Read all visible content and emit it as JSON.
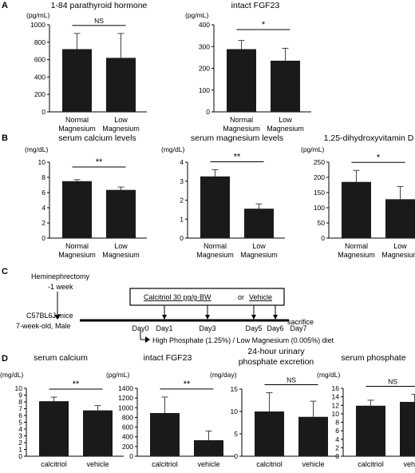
{
  "panels": [
    "A",
    "B",
    "C",
    "D"
  ],
  "chart_data": [
    {
      "id": "a1",
      "type": "bar",
      "title": "1-84 parathyroid hormone",
      "ylabel": "(pg/mL)",
      "categories": [
        [
          "Normal",
          "Magnesium"
        ],
        [
          "Low",
          "Magnesium"
        ]
      ],
      "values": [
        720,
        620
      ],
      "errors": [
        180,
        280
      ],
      "ylim": [
        0,
        1000
      ],
      "yticks": [
        0,
        200,
        400,
        600,
        800,
        1000
      ],
      "significance": "NS",
      "grid": false
    },
    {
      "id": "a2",
      "type": "bar",
      "title": "intact FGF23",
      "ylabel": "(pg/mL)",
      "categories": [
        [
          "Normal",
          "Magnesium"
        ],
        [
          "Low",
          "Magnesium"
        ]
      ],
      "values": [
        288,
        235
      ],
      "errors": [
        40,
        57
      ],
      "ylim": [
        0,
        400
      ],
      "yticks": [
        0,
        100,
        200,
        300,
        400
      ],
      "significance": "*",
      "grid": false
    },
    {
      "id": "b1",
      "type": "bar",
      "title": "serum calcium levels",
      "ylabel": "(mg/dL)",
      "categories": [
        [
          "Normal",
          "Magnesium"
        ],
        [
          "Low",
          "Magnesium"
        ]
      ],
      "values": [
        7.5,
        6.35
      ],
      "errors": [
        0.2,
        0.38
      ],
      "ylim": [
        0,
        10
      ],
      "yticks": [
        0,
        2,
        4,
        6,
        8,
        10
      ],
      "significance": "**",
      "grid": false
    },
    {
      "id": "b2",
      "type": "bar",
      "title": "serum magnesium levels",
      "ylabel": "(mg/dL)",
      "categories": [
        [
          "Normal",
          "Magnesium"
        ],
        [
          "Low",
          "Magnesium"
        ]
      ],
      "values": [
        3.25,
        1.55
      ],
      "errors": [
        0.35,
        0.25
      ],
      "ylim": [
        0,
        4
      ],
      "yticks": [
        0,
        1,
        2,
        3,
        4
      ],
      "significance": "**",
      "grid": false
    },
    {
      "id": "b3",
      "type": "bar",
      "title": "1,25-dihydroxyvitamin D",
      "ylabel": "(pg/mL)",
      "categories": [
        [
          "Normal",
          "Magnesium"
        ],
        [
          "Low",
          "Magnesium"
        ]
      ],
      "values": [
        185,
        128
      ],
      "errors": [
        38,
        42
      ],
      "ylim": [
        0,
        250
      ],
      "yticks": [
        0,
        50,
        100,
        150,
        200,
        250
      ],
      "significance": "*",
      "grid": false
    },
    {
      "id": "d1",
      "type": "bar",
      "title": "serum calcium",
      "ylabel": "(mg/dL)",
      "categories": [
        [
          "calcitriol"
        ],
        [
          "vehicle"
        ]
      ],
      "values": [
        8.1,
        6.75
      ],
      "errors": [
        0.6,
        0.7
      ],
      "ylim": [
        0,
        10
      ],
      "yticks": [
        0,
        1,
        2,
        3,
        4,
        5,
        6,
        7,
        8,
        9,
        10
      ],
      "significance": "**",
      "grid": false
    },
    {
      "id": "d2",
      "type": "bar",
      "title": "intact FGF23",
      "ylabel": "(pg/mL)",
      "categories": [
        [
          "calcitriol"
        ],
        [
          "vehicle"
        ]
      ],
      "values": [
        890,
        330
      ],
      "errors": [
        330,
        190
      ],
      "ylim": [
        0,
        1400
      ],
      "yticks": [
        0,
        200,
        400,
        600,
        800,
        1000,
        1200,
        1400
      ],
      "significance": "**",
      "grid": false
    },
    {
      "id": "d3",
      "type": "bar",
      "title": [
        "24-hour urinary",
        "phosphate excretion"
      ],
      "ylabel": "(mg/day)",
      "categories": [
        [
          "calcitriol"
        ],
        [
          "vehicle"
        ]
      ],
      "values": [
        10.0,
        8.8
      ],
      "errors": [
        4.2,
        3.5
      ],
      "ylim": [
        0,
        15
      ],
      "yticks": [
        0,
        5,
        10,
        15
      ],
      "significance": "NS",
      "grid": false
    },
    {
      "id": "d4",
      "type": "bar",
      "title": "serum phosphate",
      "ylabel": "(mg/dL)",
      "categories": [
        [
          "calcitriol"
        ],
        [
          "vehicle"
        ]
      ],
      "values": [
        11.9,
        12.8
      ],
      "errors": [
        1.3,
        1.8
      ],
      "ylim": [
        0,
        16
      ],
      "yticks": [
        0,
        2,
        4,
        6,
        8,
        10,
        12,
        14,
        16
      ],
      "significance": "NS",
      "grid": false
    }
  ],
  "timeline": {
    "surgery": "Heminephrectomy",
    "surgery_time": "-1 week",
    "mice": [
      "C57BL6J mice",
      "7-week-old, Male"
    ],
    "treatment": "Calcitriol 30 pg/g·BW",
    "treatment_or": "or",
    "treatment_alt": "Vehicle",
    "end": "sacrifice",
    "days": [
      "Day0",
      "Day1",
      "Day3",
      "Day5",
      "Day6",
      "Day7"
    ],
    "diet": "High Phosphate  (1.25%) / Low Magnesium (0.005%) diet"
  }
}
